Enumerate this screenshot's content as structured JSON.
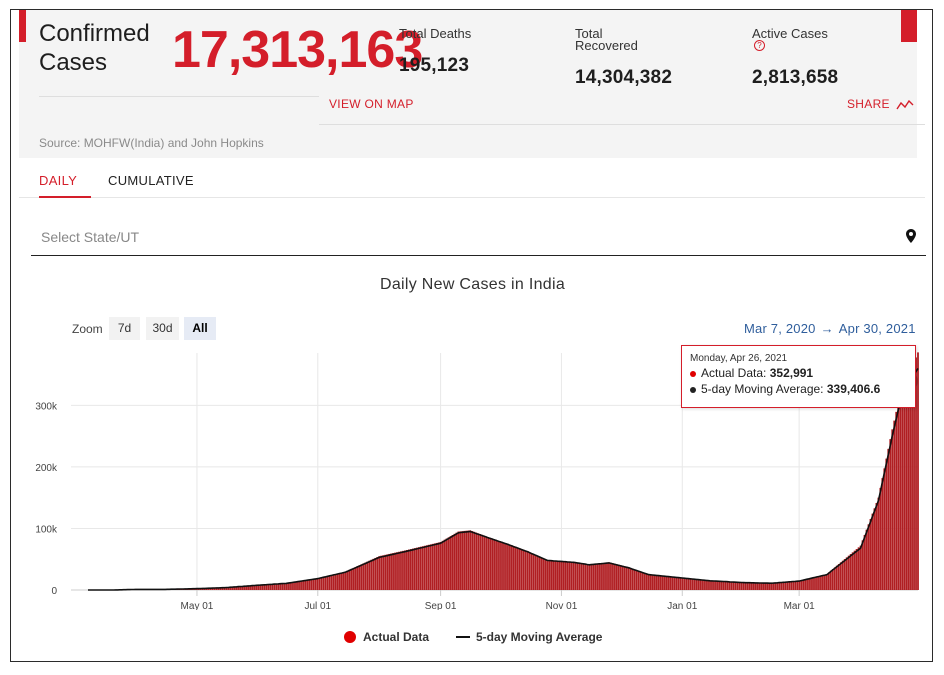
{
  "summary": {
    "confirmed_label": "Confirmed Cases",
    "confirmed_value": "17,313,163",
    "deaths_label": "Total Deaths",
    "deaths_value": "195,123",
    "recovered_label": "Total Recovered",
    "recovered_value": "14,304,382",
    "active_label": "Active Cases",
    "active_value": "2,813,658",
    "help_icon": "?",
    "view_on_map": "VIEW ON MAP",
    "share": "SHARE",
    "source": "Source: MOHFW(India) and John Hopkins"
  },
  "tabs": [
    {
      "label": "DAILY",
      "active": true
    },
    {
      "label": "CUMULATIVE",
      "active": false
    }
  ],
  "select": {
    "placeholder": "Select State/UT",
    "icon": "map-pin-icon"
  },
  "zoom": {
    "label": "Zoom",
    "buttons": [
      "7d",
      "30d",
      "All"
    ],
    "selected": "All"
  },
  "range": {
    "from": "Mar 7, 2020",
    "arrow": "→",
    "to": "Apr 30, 2021"
  },
  "tooltip": {
    "date": "Monday, Apr 26, 2021",
    "actual_label": "Actual Data:",
    "actual_value": "352,991",
    "avg_label": "5-day Moving Average:",
    "avg_value": "339,406.6"
  },
  "legend": {
    "actual": "Actual Data",
    "avg": "5-day Moving Average"
  },
  "colors": {
    "accent": "#d41e2a",
    "bar": "#b01e22",
    "line": "#111111",
    "range_link": "#2f5e9c"
  },
  "chart_data": {
    "type": "bar",
    "title": "Daily New Cases in India",
    "x_start": "2020-03-07",
    "x_end": "2021-04-30",
    "x_ticks": [
      {
        "date": "2020-05-01",
        "label": "May 01"
      },
      {
        "date": "2020-07-01",
        "label": "Jul 01"
      },
      {
        "date": "2020-09-01",
        "label": "Sep 01"
      },
      {
        "date": "2020-11-01",
        "label": "Nov 01"
      },
      {
        "date": "2021-01-01",
        "label": "Jan 01"
      },
      {
        "date": "2021-03-01",
        "label": "Mar 01"
      }
    ],
    "y_ticks": [
      {
        "value": 0,
        "label": "0"
      },
      {
        "value": 100000,
        "label": "100k"
      },
      {
        "value": 200000,
        "label": "200k"
      },
      {
        "value": 300000,
        "label": "300k"
      }
    ],
    "ylim": [
      0,
      385000
    ],
    "grid": true,
    "legend_position": "bottom",
    "series": [
      {
        "name": "Actual Data",
        "kind": "bar",
        "points": [
          [
            "2020-03-07",
            0
          ],
          [
            "2020-03-20",
            50
          ],
          [
            "2020-04-01",
            1200
          ],
          [
            "2020-04-15",
            1000
          ],
          [
            "2020-05-01",
            2300
          ],
          [
            "2020-05-15",
            4000
          ],
          [
            "2020-06-01",
            8000
          ],
          [
            "2020-06-15",
            11000
          ],
          [
            "2020-07-01",
            19000
          ],
          [
            "2020-07-15",
            30000
          ],
          [
            "2020-08-01",
            55000
          ],
          [
            "2020-08-15",
            65000
          ],
          [
            "2020-09-01",
            78000
          ],
          [
            "2020-09-10",
            95000
          ],
          [
            "2020-09-16",
            97000
          ],
          [
            "2020-09-25",
            86000
          ],
          [
            "2020-10-05",
            75000
          ],
          [
            "2020-10-15",
            63000
          ],
          [
            "2020-10-25",
            47000
          ],
          [
            "2020-11-07",
            46000
          ],
          [
            "2020-11-15",
            40000
          ],
          [
            "2020-11-25",
            45000
          ],
          [
            "2020-12-05",
            37000
          ],
          [
            "2020-12-15",
            25000
          ],
          [
            "2021-01-01",
            20000
          ],
          [
            "2021-01-15",
            15000
          ],
          [
            "2021-02-01",
            12000
          ],
          [
            "2021-02-15",
            11000
          ],
          [
            "2021-03-01",
            15000
          ],
          [
            "2021-03-15",
            26000
          ],
          [
            "2021-04-01",
            72000
          ],
          [
            "2021-04-10",
            150000
          ],
          [
            "2021-04-17",
            261000
          ],
          [
            "2021-04-22",
            332000
          ],
          [
            "2021-04-26",
            352991
          ],
          [
            "2021-04-30",
            386000
          ]
        ]
      },
      {
        "name": "5-day Moving Average",
        "kind": "line",
        "points": [
          [
            "2020-03-07",
            0
          ],
          [
            "2020-03-20",
            50
          ],
          [
            "2020-04-01",
            1000
          ],
          [
            "2020-04-15",
            1000
          ],
          [
            "2020-05-01",
            2200
          ],
          [
            "2020-05-15",
            3800
          ],
          [
            "2020-06-01",
            7800
          ],
          [
            "2020-06-15",
            10800
          ],
          [
            "2020-07-01",
            18500
          ],
          [
            "2020-07-15",
            29000
          ],
          [
            "2020-08-01",
            53000
          ],
          [
            "2020-08-15",
            63000
          ],
          [
            "2020-09-01",
            76000
          ],
          [
            "2020-09-10",
            93000
          ],
          [
            "2020-09-16",
            95000
          ],
          [
            "2020-09-25",
            85000
          ],
          [
            "2020-10-05",
            74000
          ],
          [
            "2020-10-15",
            62000
          ],
          [
            "2020-10-25",
            48000
          ],
          [
            "2020-11-07",
            45000
          ],
          [
            "2020-11-15",
            41000
          ],
          [
            "2020-11-25",
            44000
          ],
          [
            "2020-12-05",
            36000
          ],
          [
            "2020-12-15",
            25000
          ],
          [
            "2021-01-01",
            19500
          ],
          [
            "2021-01-15",
            15000
          ],
          [
            "2021-02-01",
            12000
          ],
          [
            "2021-02-15",
            11000
          ],
          [
            "2021-03-01",
            14500
          ],
          [
            "2021-03-15",
            25000
          ],
          [
            "2021-04-01",
            68000
          ],
          [
            "2021-04-10",
            145000
          ],
          [
            "2021-04-17",
            250000
          ],
          [
            "2021-04-22",
            320000
          ],
          [
            "2021-04-26",
            339406.6
          ],
          [
            "2021-04-30",
            360000
          ]
        ]
      }
    ]
  }
}
